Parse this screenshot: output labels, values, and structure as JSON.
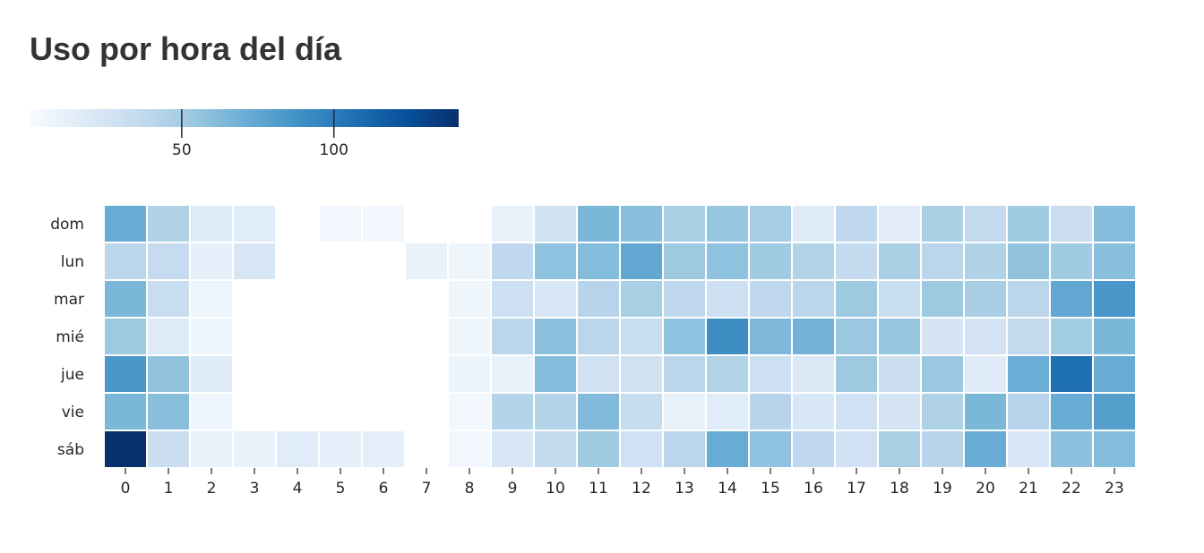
{
  "chart_data": {
    "type": "heatmap",
    "title": "Uso por hora del día",
    "xlabel": "",
    "ylabel": "",
    "colormap": "Blues",
    "color_low": "#f7fbff",
    "color_high": "#08306b",
    "cell_border_color": "#ffffff",
    "colorbar": {
      "position": "top-left",
      "orientation": "horizontal",
      "range": [
        0,
        141
      ],
      "ticks": [
        50,
        100
      ]
    },
    "x": [
      "0",
      "1",
      "2",
      "3",
      "4",
      "5",
      "6",
      "7",
      "8",
      "9",
      "10",
      "11",
      "12",
      "13",
      "14",
      "15",
      "16",
      "17",
      "18",
      "19",
      "20",
      "21",
      "22",
      "23"
    ],
    "y": [
      "dom",
      "lun",
      "mar",
      "mié",
      "jue",
      "vie",
      "sáb"
    ],
    "values": [
      [
        72,
        45,
        18,
        16,
        null,
        4,
        4,
        null,
        null,
        10,
        28,
        65,
        60,
        48,
        55,
        50,
        17,
        38,
        15,
        47,
        37,
        52,
        32,
        62
      ],
      [
        40,
        35,
        12,
        23,
        null,
        null,
        null,
        10,
        6,
        38,
        58,
        62,
        75,
        53,
        58,
        52,
        44,
        36,
        47,
        40,
        45,
        57,
        52,
        60
      ],
      [
        65,
        33,
        7,
        null,
        null,
        null,
        null,
        null,
        6,
        30,
        22,
        42,
        48,
        38,
        30,
        38,
        40,
        53,
        33,
        53,
        49,
        40,
        75,
        85
      ],
      [
        53,
        18,
        6,
        null,
        null,
        null,
        null,
        null,
        6,
        40,
        59,
        40,
        33,
        58,
        90,
        64,
        68,
        54,
        55,
        24,
        26,
        37,
        51,
        65
      ],
      [
        85,
        57,
        17,
        null,
        null,
        null,
        null,
        null,
        8,
        10,
        62,
        27,
        28,
        40,
        44,
        30,
        20,
        53,
        31,
        54,
        17,
        71,
        107,
        72
      ],
      [
        65,
        60,
        5,
        null,
        null,
        null,
        null,
        null,
        4,
        43,
        43,
        63,
        34,
        11,
        16,
        42,
        22,
        29,
        25,
        46,
        65,
        42,
        72,
        80
      ],
      [
        141,
        32,
        10,
        10,
        16,
        13,
        14,
        null,
        4,
        23,
        36,
        52,
        29,
        40,
        72,
        58,
        38,
        29,
        48,
        42,
        72,
        22,
        59,
        62
      ]
    ]
  }
}
